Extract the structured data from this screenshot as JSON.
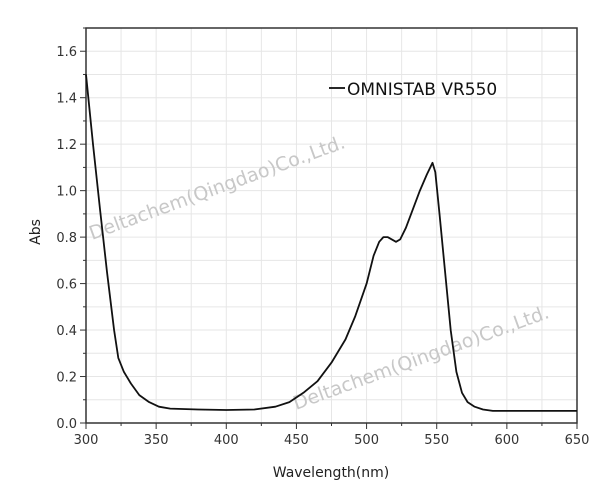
{
  "chart_data": {
    "type": "line",
    "title": "",
    "xlabel": "Wavelength(nm)",
    "ylabel": "Abs",
    "xlim": [
      300,
      650
    ],
    "ylim": [
      0,
      1.7
    ],
    "xticks": [
      300,
      350,
      400,
      450,
      500,
      550,
      600,
      650
    ],
    "xtick_labels": [
      "300",
      "350",
      "400",
      "450",
      "500",
      "550",
      "600",
      "650"
    ],
    "yticks": [
      0,
      0.2,
      0.4,
      0.6,
      0.8,
      1.0,
      1.2,
      1.4,
      1.6
    ],
    "ytick_labels": [
      "0.0",
      "0.2",
      "0.4",
      "0.6",
      "0.8",
      "1.0",
      "1.2",
      "1.4",
      "1.6"
    ],
    "grid": true,
    "legend": "top-right",
    "series": [
      {
        "name": "OMNISTAB VR550",
        "color": "#111111",
        "x": [
          300,
          305,
          310,
          315,
          320,
          323,
          327,
          332,
          338,
          345,
          352,
          360,
          380,
          400,
          420,
          435,
          445,
          455,
          465,
          475,
          485,
          492,
          500,
          505,
          509,
          512,
          515,
          518,
          521,
          524,
          528,
          533,
          538,
          543,
          547,
          549,
          552,
          556,
          560,
          564,
          568,
          572,
          577,
          583,
          590,
          620,
          650
        ],
        "y": [
          1.5,
          1.2,
          0.92,
          0.65,
          0.4,
          0.28,
          0.22,
          0.17,
          0.12,
          0.09,
          0.07,
          0.062,
          0.058,
          0.056,
          0.058,
          0.07,
          0.09,
          0.13,
          0.18,
          0.26,
          0.36,
          0.46,
          0.6,
          0.72,
          0.78,
          0.8,
          0.8,
          0.79,
          0.78,
          0.79,
          0.84,
          0.92,
          1.0,
          1.07,
          1.12,
          1.08,
          0.9,
          0.65,
          0.4,
          0.22,
          0.13,
          0.09,
          0.07,
          0.058,
          0.052,
          0.052,
          0.052
        ]
      }
    ]
  },
  "watermark": "Deltachem(Qingdao)Co.,Ltd."
}
